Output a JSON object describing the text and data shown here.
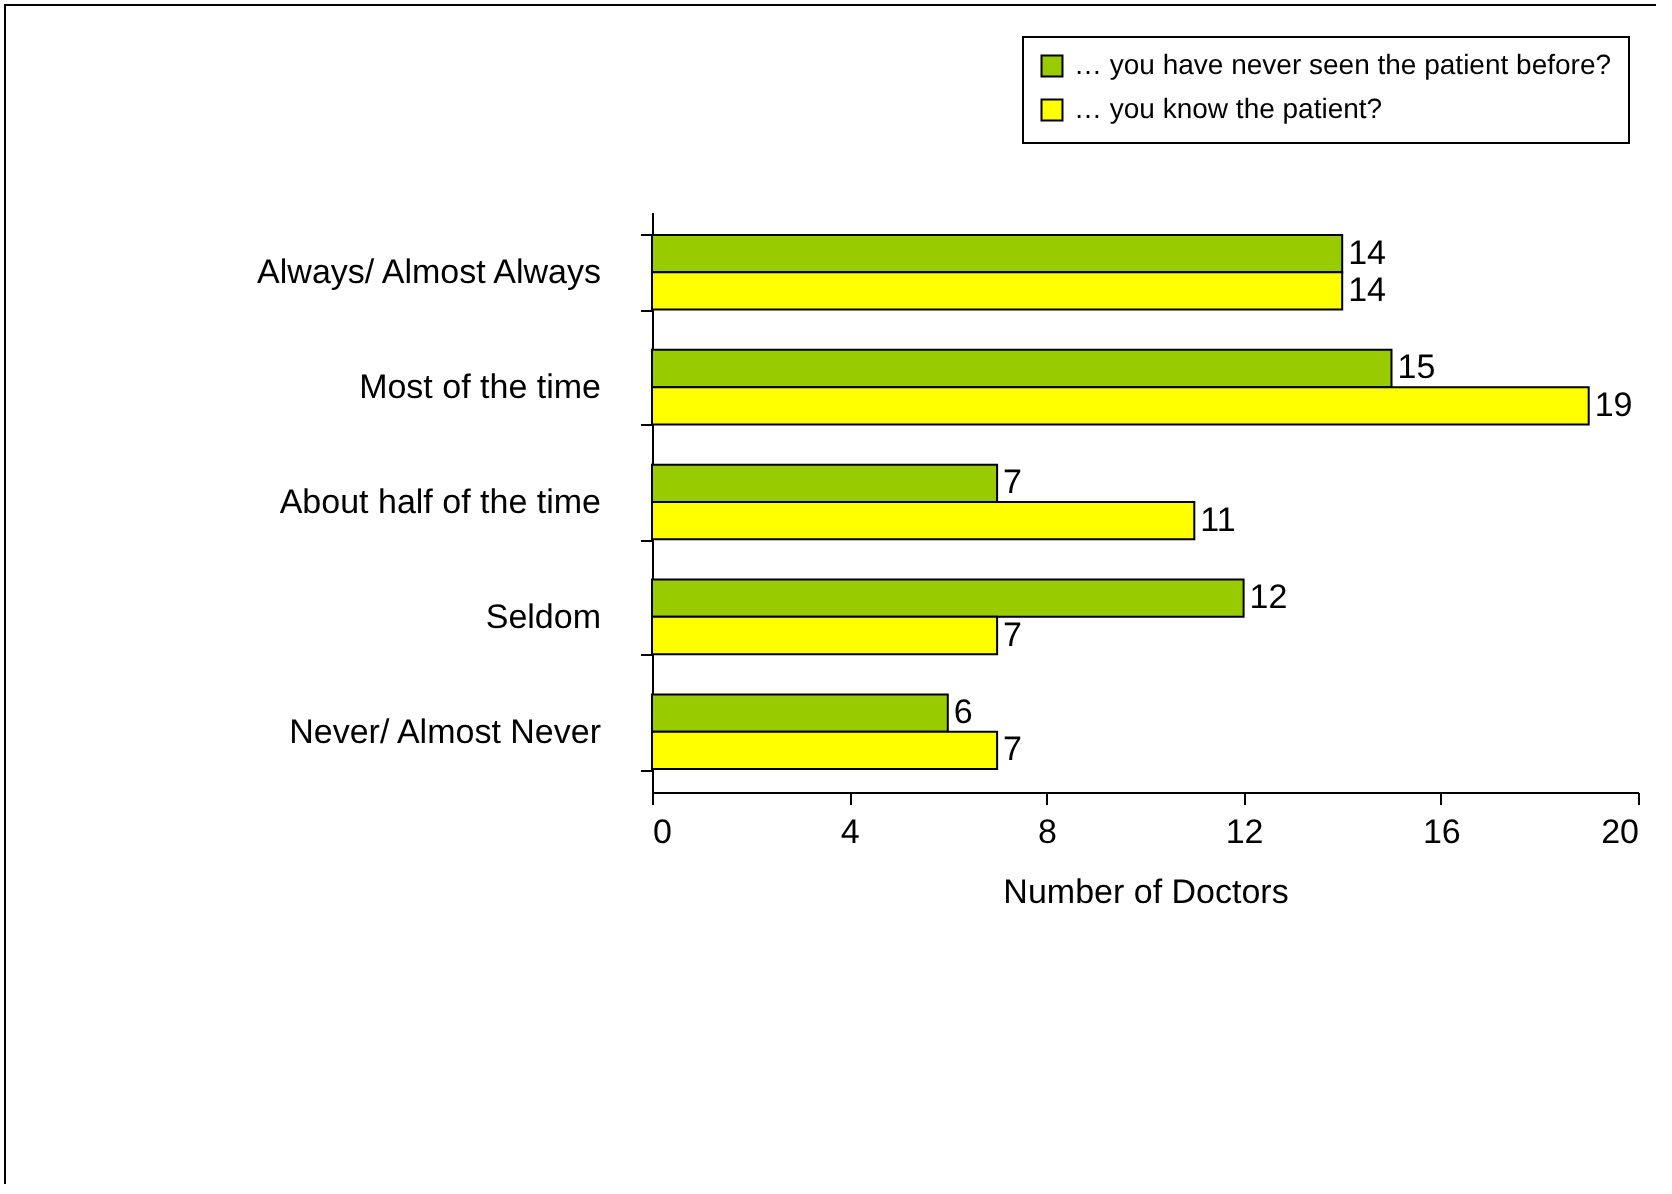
{
  "chart_data": {
    "type": "bar",
    "orientation": "horizontal",
    "categories": [
      "Always/ Almost Always",
      "Most of the time",
      "About half of the time",
      "Seldom",
      "Never/ Almost Never"
    ],
    "series": [
      {
        "name": "… you have never seen the patient before?",
        "color": "#99cc00",
        "values": [
          14,
          15,
          7,
          12,
          6
        ]
      },
      {
        "name": "… you know the patient?",
        "color": "#ffff00",
        "values": [
          14,
          19,
          11,
          7,
          7
        ]
      }
    ],
    "xlabel": "Number of Doctors",
    "xlim": [
      0,
      20
    ],
    "xticks": [
      0,
      4,
      8,
      12,
      16,
      20
    ],
    "data_labels": true,
    "legend": "top right",
    "grid": false
  }
}
